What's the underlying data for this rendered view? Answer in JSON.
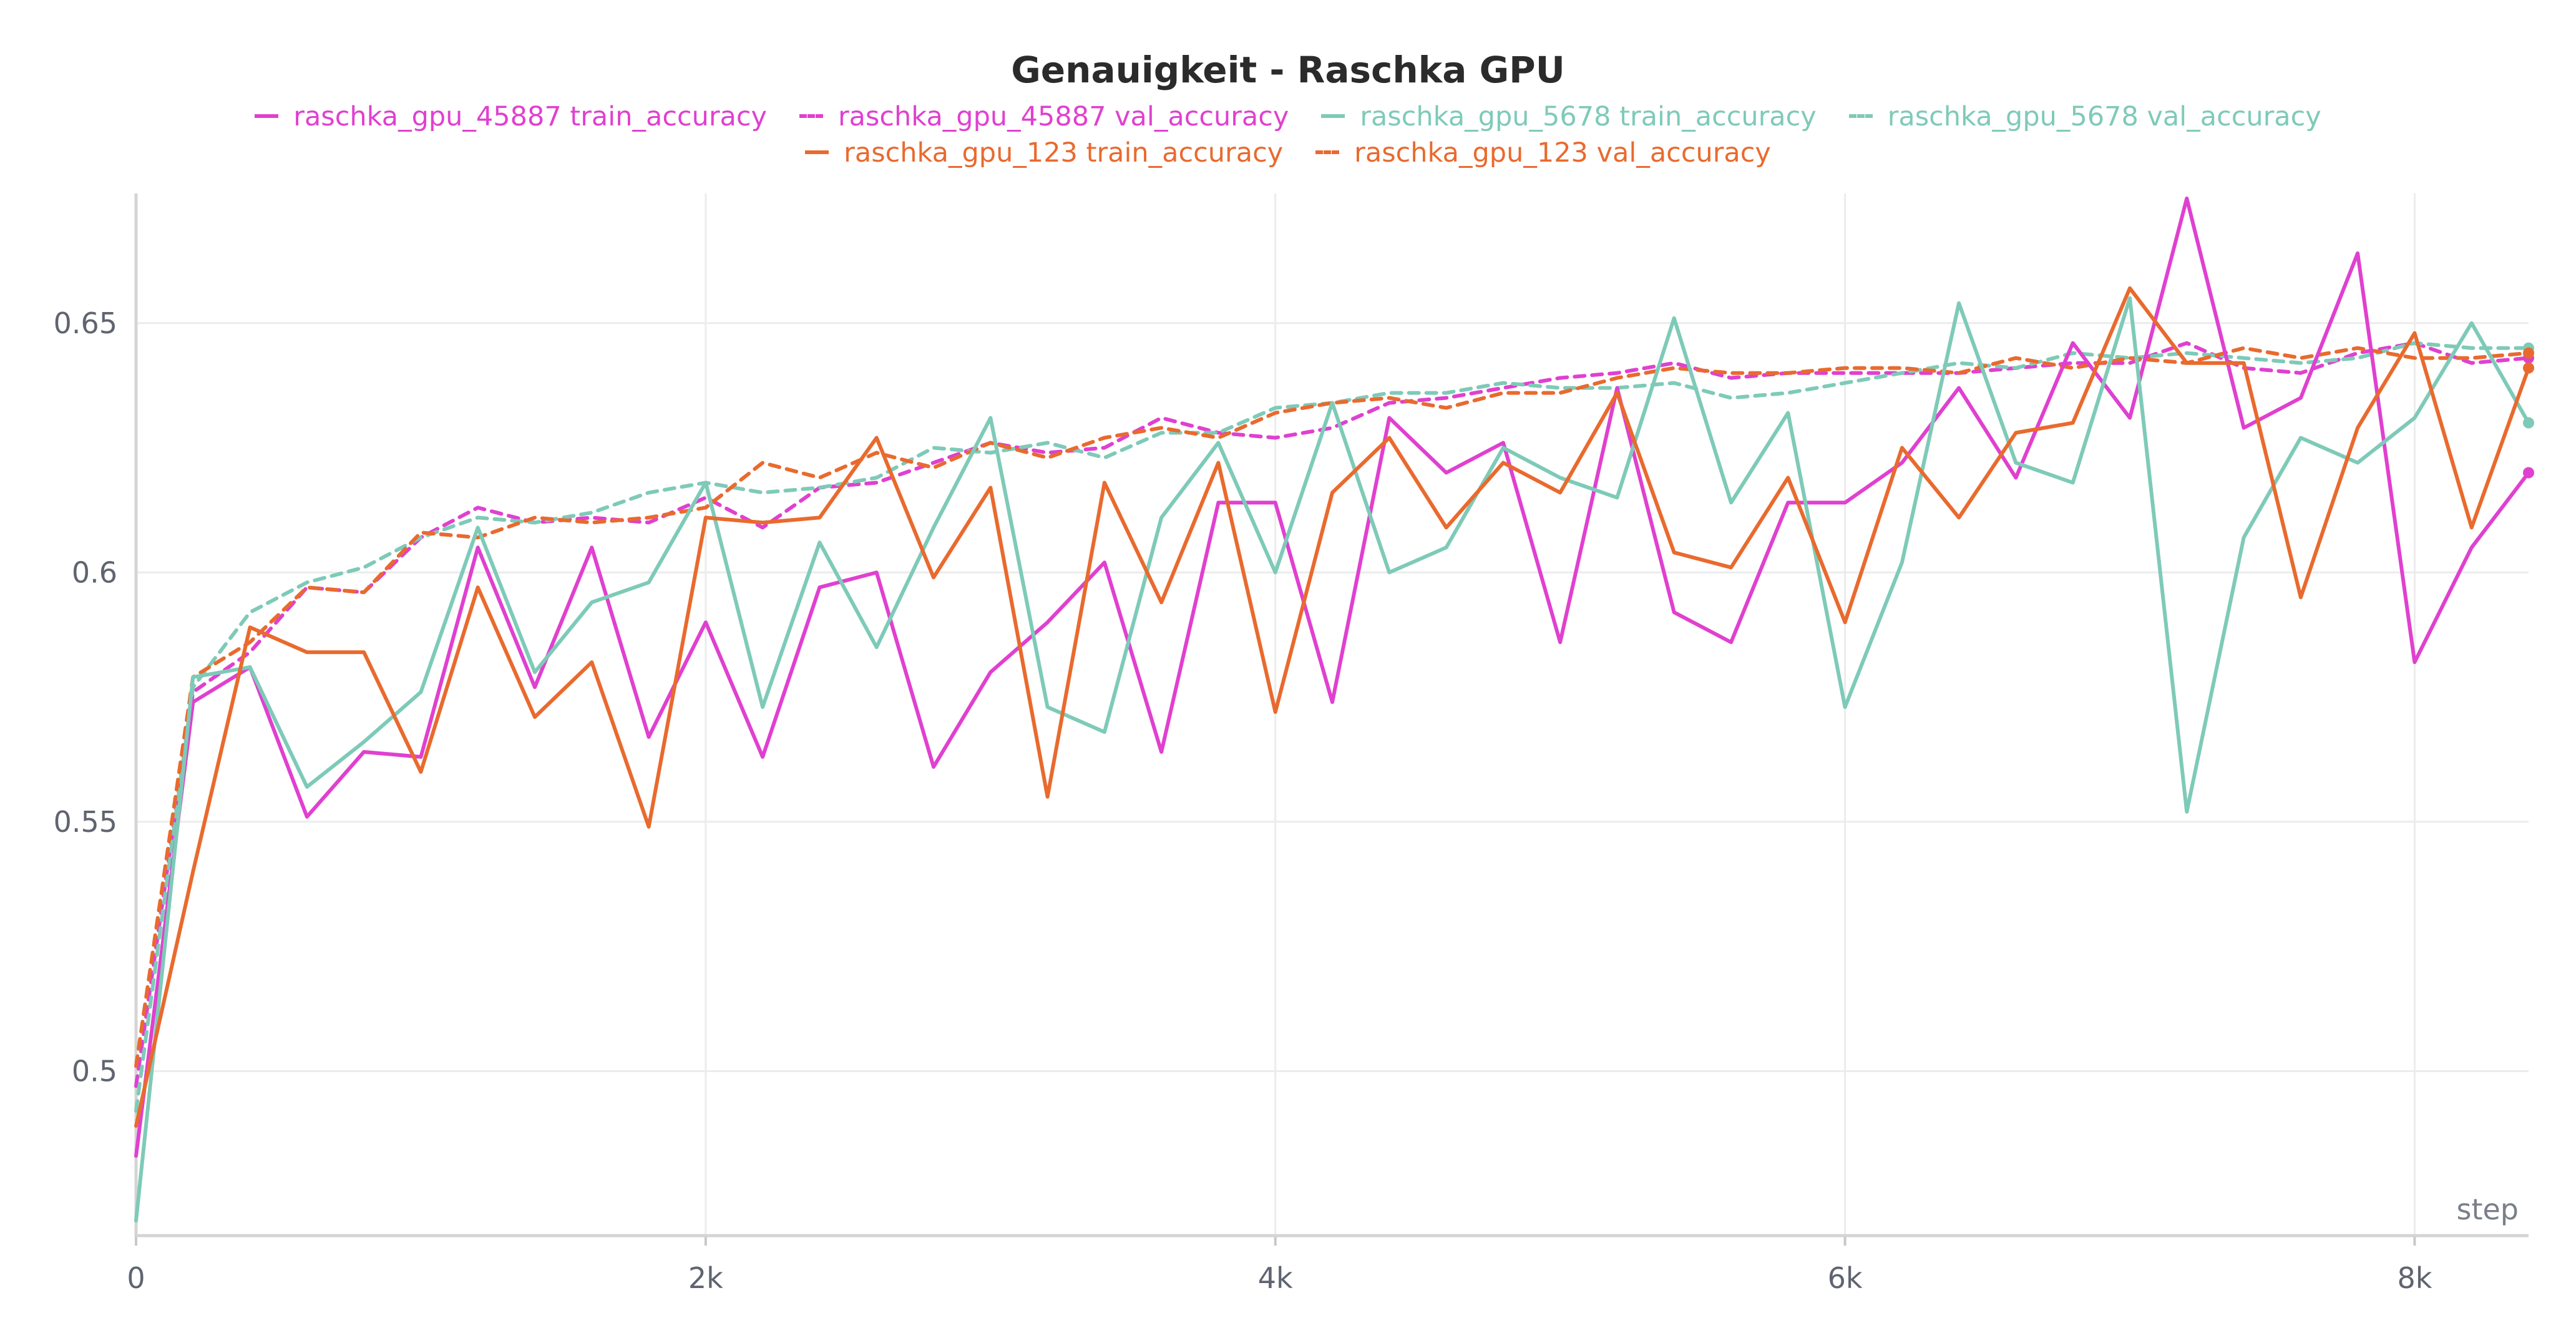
{
  "chart_data": {
    "type": "line",
    "title": "Genauigkeit - Raschka GPU",
    "xlabel": "step",
    "ylabel": "",
    "xlim": [
      0,
      8400
    ],
    "ylim": [
      0.467,
      0.676
    ],
    "x_ticks": [
      0,
      2000,
      4000,
      6000,
      8000
    ],
    "x_tick_labels": [
      "0",
      "2k",
      "4k",
      "6k",
      "8k"
    ],
    "y_ticks": [
      0.5,
      0.55,
      0.6,
      0.65
    ],
    "y_tick_labels": [
      "0.5",
      "0.55",
      "0.6",
      "0.65"
    ],
    "grid": true,
    "legend_position": "top",
    "x": [
      0,
      200,
      400,
      600,
      800,
      1000,
      1200,
      1400,
      1600,
      1800,
      2000,
      2200,
      2400,
      2600,
      2800,
      3000,
      3200,
      3400,
      3600,
      3800,
      4000,
      4200,
      4400,
      4600,
      4800,
      5000,
      5200,
      5400,
      5600,
      5800,
      6000,
      6200,
      6400,
      6600,
      6800,
      7000,
      7200,
      7400,
      7600,
      7800,
      8000,
      8200,
      8400
    ],
    "series": [
      {
        "name": "raschka_gpu_45887 train_accuracy",
        "color": "#e040d0",
        "dashed": false,
        "values": [
          0.483,
          0.574,
          0.581,
          0.551,
          0.564,
          0.563,
          0.605,
          0.577,
          0.605,
          0.567,
          0.59,
          0.563,
          0.597,
          0.6,
          0.561,
          0.58,
          0.59,
          0.602,
          0.564,
          0.614,
          0.614,
          0.574,
          0.631,
          0.62,
          0.626,
          0.586,
          0.637,
          0.592,
          0.586,
          0.614,
          0.614,
          0.622,
          0.637,
          0.619,
          0.646,
          0.631,
          0.675,
          0.629,
          0.635,
          0.664,
          0.582,
          0.605,
          0.62
        ]
      },
      {
        "name": "raschka_gpu_45887 val_accuracy",
        "color": "#e040d0",
        "dashed": true,
        "values": [
          0.497,
          0.576,
          0.584,
          0.597,
          0.596,
          0.607,
          0.613,
          0.61,
          0.611,
          0.61,
          0.615,
          0.609,
          0.617,
          0.618,
          0.622,
          0.626,
          0.624,
          0.625,
          0.631,
          0.628,
          0.627,
          0.629,
          0.634,
          0.635,
          0.637,
          0.639,
          0.64,
          0.642,
          0.639,
          0.64,
          0.64,
          0.64,
          0.64,
          0.641,
          0.642,
          0.642,
          0.646,
          0.641,
          0.64,
          0.644,
          0.646,
          0.642,
          0.643
        ]
      },
      {
        "name": "raschka_gpu_5678 train_accuracy",
        "color": "#7ecab8",
        "dashed": false,
        "values": [
          0.47,
          0.579,
          0.581,
          0.557,
          0.566,
          0.576,
          0.609,
          0.58,
          0.594,
          0.598,
          0.618,
          0.573,
          0.606,
          0.585,
          0.609,
          0.631,
          0.573,
          0.568,
          0.611,
          0.626,
          0.6,
          0.634,
          0.6,
          0.605,
          0.625,
          0.619,
          0.615,
          0.651,
          0.614,
          0.632,
          0.573,
          0.602,
          0.654,
          0.622,
          0.618,
          0.655,
          0.552,
          0.607,
          0.627,
          0.622,
          0.631,
          0.65,
          0.63
        ]
      },
      {
        "name": "raschka_gpu_5678 val_accuracy",
        "color": "#7ecab8",
        "dashed": true,
        "values": [
          0.492,
          0.577,
          0.592,
          0.598,
          0.601,
          0.607,
          0.611,
          0.61,
          0.612,
          0.616,
          0.618,
          0.616,
          0.617,
          0.619,
          0.625,
          0.624,
          0.626,
          0.623,
          0.628,
          0.628,
          0.633,
          0.634,
          0.636,
          0.636,
          0.638,
          0.637,
          0.637,
          0.638,
          0.635,
          0.636,
          0.638,
          0.64,
          0.642,
          0.641,
          0.644,
          0.643,
          0.644,
          0.643,
          0.642,
          0.643,
          0.646,
          0.645,
          0.645
        ]
      },
      {
        "name": "raschka_gpu_123 train_accuracy",
        "color": "#e96a2e",
        "dashed": false,
        "values": [
          0.489,
          0.54,
          0.589,
          0.584,
          0.584,
          0.56,
          0.597,
          0.571,
          0.582,
          0.549,
          0.611,
          0.61,
          0.611,
          0.627,
          0.599,
          0.617,
          0.555,
          0.618,
          0.594,
          0.622,
          0.572,
          0.616,
          0.627,
          0.609,
          0.622,
          0.616,
          0.636,
          0.604,
          0.601,
          0.619,
          0.59,
          0.625,
          0.611,
          0.628,
          0.63,
          0.657,
          0.642,
          0.642,
          0.595,
          0.629,
          0.648,
          0.609,
          0.641
        ]
      },
      {
        "name": "raschka_gpu_123 val_accuracy",
        "color": "#e96a2e",
        "dashed": true,
        "values": [
          0.501,
          0.579,
          0.586,
          0.597,
          0.596,
          0.608,
          0.607,
          0.611,
          0.61,
          0.611,
          0.613,
          0.622,
          0.619,
          0.624,
          0.621,
          0.626,
          0.623,
          0.627,
          0.629,
          0.627,
          0.632,
          0.634,
          0.635,
          0.633,
          0.636,
          0.636,
          0.639,
          0.641,
          0.64,
          0.64,
          0.641,
          0.641,
          0.64,
          0.643,
          0.641,
          0.643,
          0.642,
          0.645,
          0.643,
          0.645,
          0.643,
          0.643,
          0.644
        ]
      }
    ]
  }
}
